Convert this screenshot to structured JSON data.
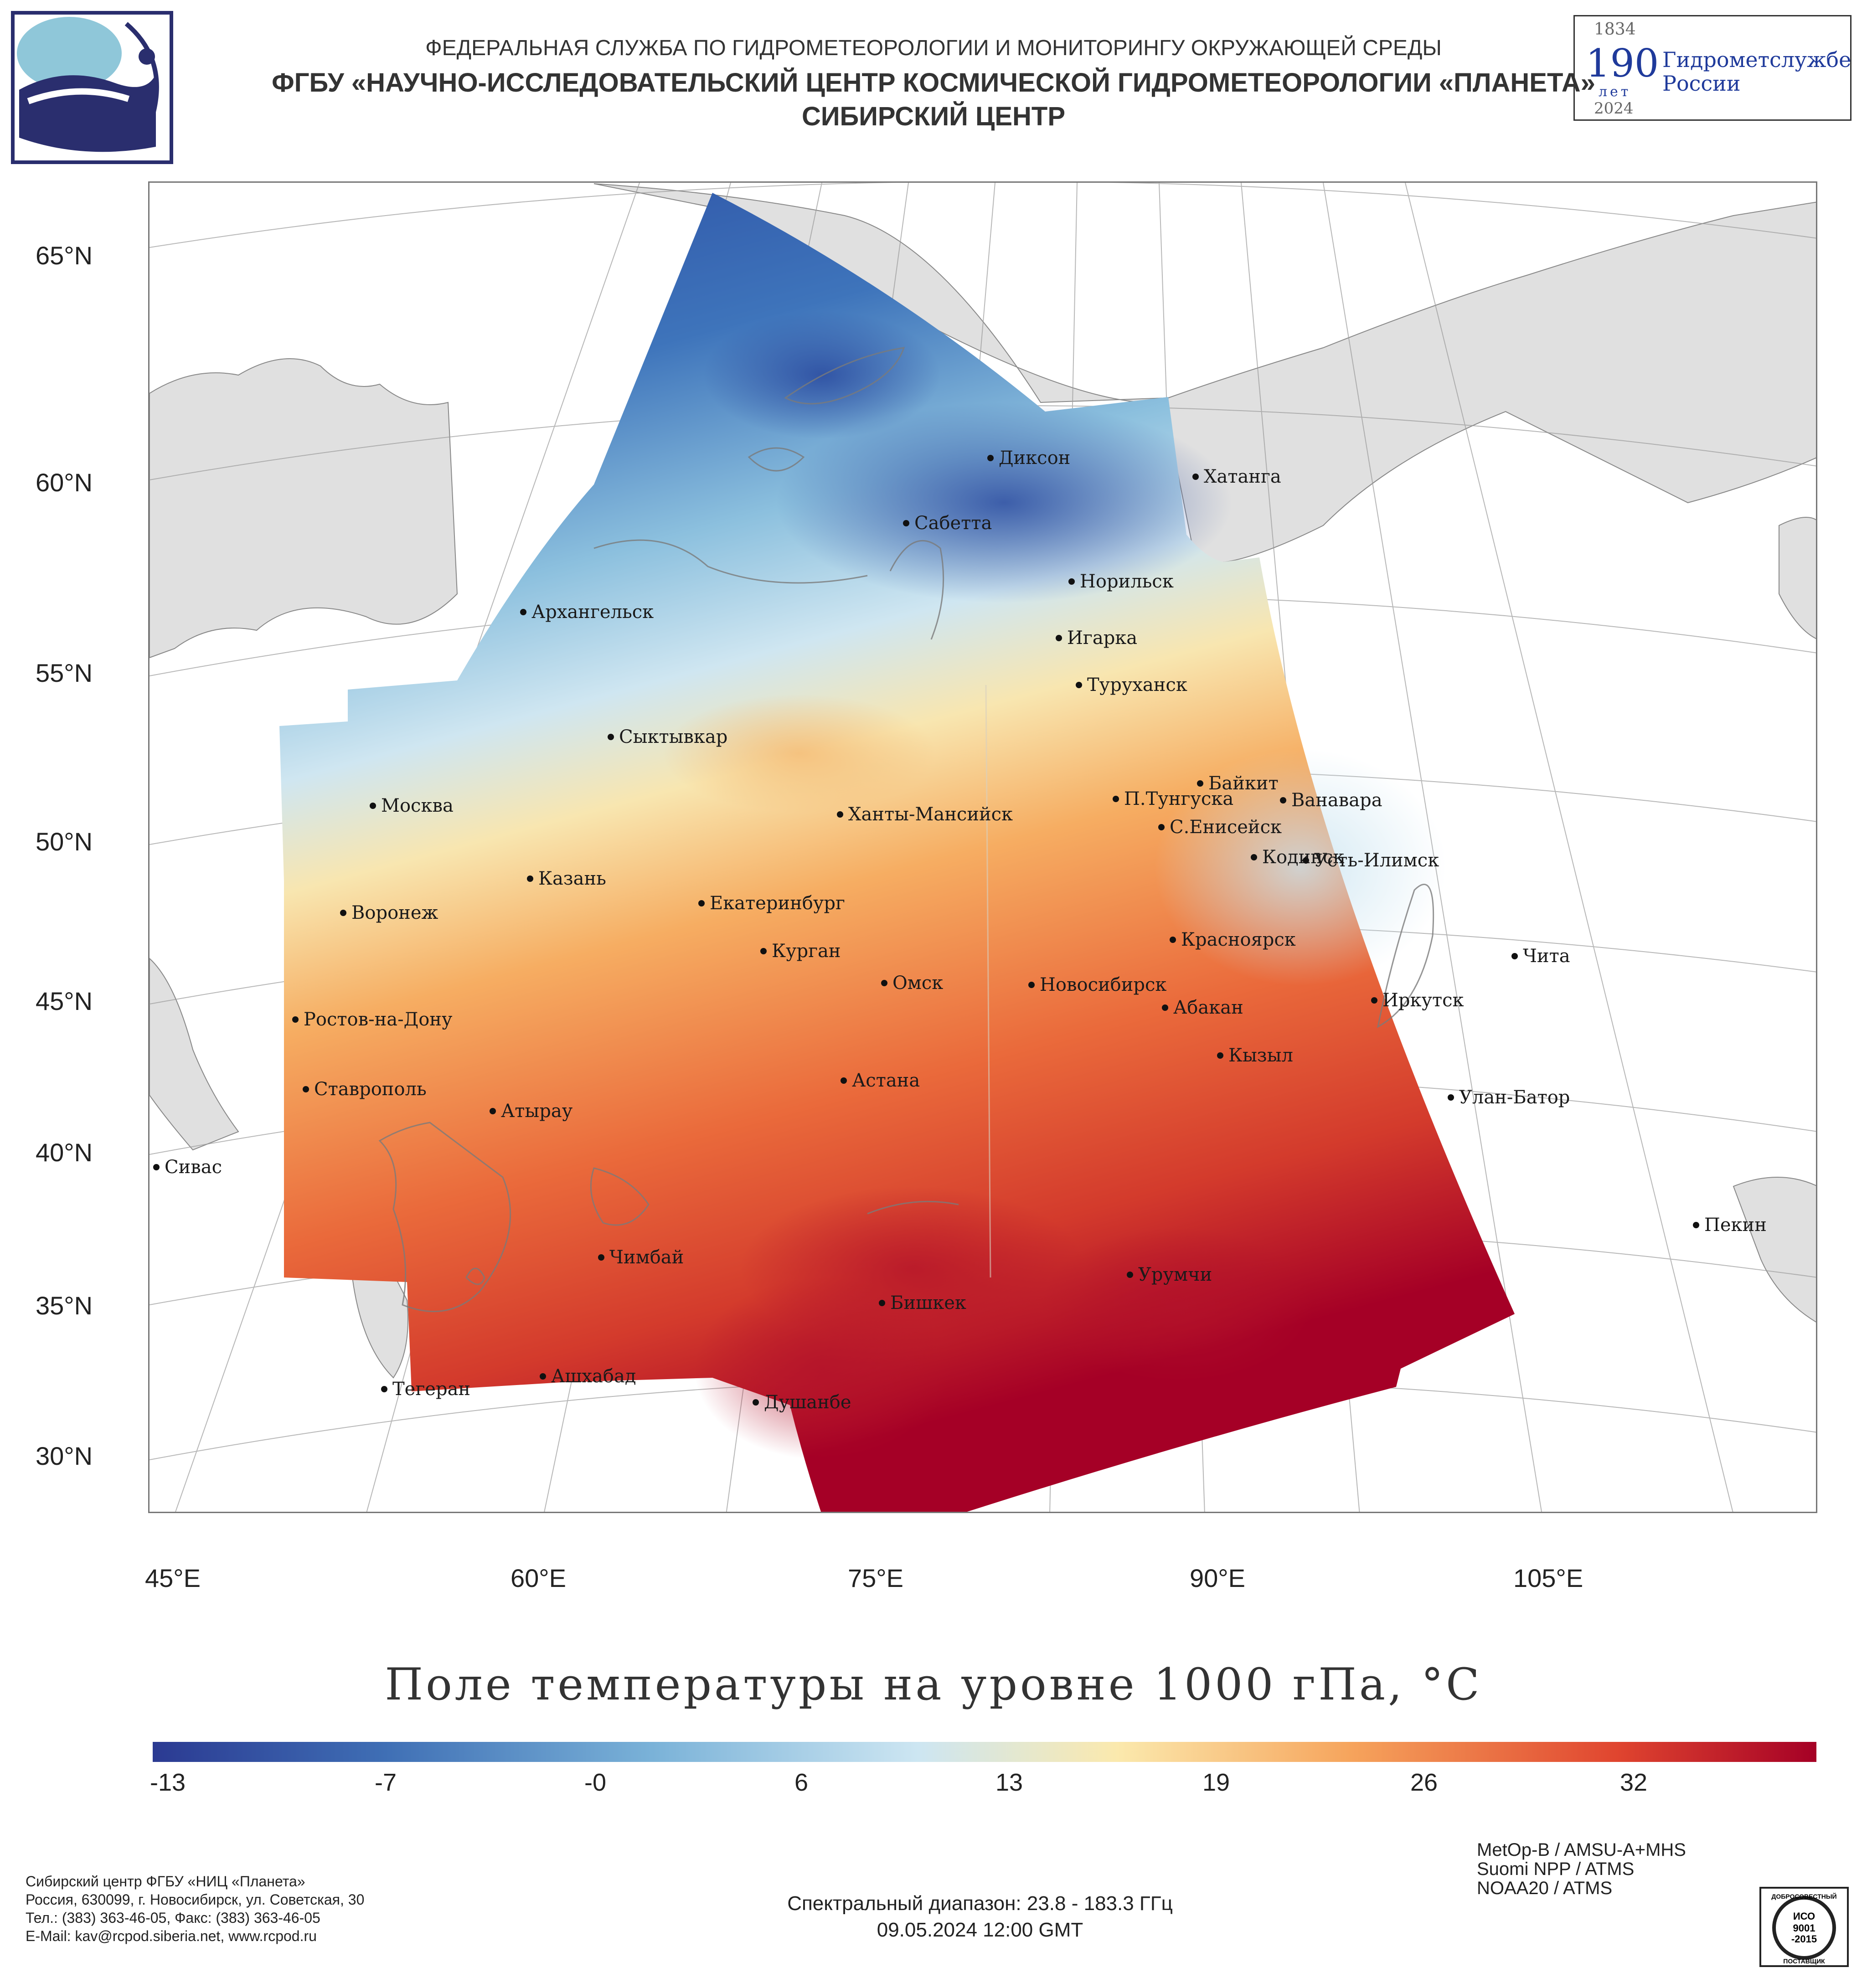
{
  "header": {
    "agency": "ФЕДЕРАЛЬНАЯ СЛУЖБА ПО ГИДРОМЕТЕОРОЛОГИИ И МОНИТОРИНГУ ОКРУЖАЮЩЕЙ СРЕДЫ",
    "institute": "ФГБУ «НАУЧНО-ИССЛЕДОВАТЕЛЬСКИЙ ЦЕНТР КОСМИЧЕСКОЙ ГИДРОМЕТЕОРОЛОГИИ «ПЛАНЕТА»",
    "center": "СИБИРСКИЙ ЦЕНТР"
  },
  "anniversary": {
    "year_start": "1834",
    "years": "190",
    "years_word": "лет",
    "year_end": "2024",
    "text_line1": "Гидрометслужбе",
    "text_line2": "России"
  },
  "map": {
    "latitude_labels": [
      "65°N",
      "60°N",
      "55°N",
      "50°N",
      "45°N",
      "40°N",
      "35°N",
      "30°N"
    ],
    "longitude_labels": [
      "45°E",
      "60°E",
      "75°E",
      "90°E",
      "105°E"
    ],
    "cities": [
      "Диксон",
      "Хатанга",
      "Сабетта",
      "Архангельск",
      "Норильск",
      "Игарка",
      "Туруханск",
      "Сыктывкар",
      "Байкит",
      "Москва",
      "П.Тунгуска",
      "Ванавара",
      "Ханты-Мансийск",
      "С.Енисейск",
      "Кодинск",
      "Усть-Илимск",
      "Казань",
      "Екатеринбург",
      "Воронеж",
      "Красноярск",
      "Курган",
      "Чита",
      "Омск",
      "Новосибирск",
      "Иркутск",
      "Ростов-на-Дону",
      "Абакан",
      "Кызыл",
      "Ставрополь",
      "Астана",
      "Улан-Батор",
      "Атырау",
      "Сивас",
      "Пекин",
      "Чимбай",
      "Урумчи",
      "Бишкек",
      "Ашхабад",
      "Тегеран",
      "Душанбе"
    ],
    "title": "Поле температуры на уровне 1000 гПа, °C"
  },
  "colorbar": {
    "ticks": [
      "-13",
      "-7",
      "-0",
      "6",
      "13",
      "19",
      "26",
      "32"
    ],
    "colors": [
      "#2b3a92",
      "#3f6fb5",
      "#7ab2d8",
      "#cde6f2",
      "#fbe9ad",
      "#f6a45c",
      "#e0452f",
      "#a50026"
    ]
  },
  "footer": {
    "org": "Сибирский центр ФГБУ «НИЦ «Планета»",
    "address": "Россия, 630099, г. Новосибирск, ул. Советская, 30",
    "phone": "Тел.: (383) 363-46-05, Факс: (383) 363-46-05",
    "email": "E-Mail: kav@rcpod.siberia.net, www.rcpod.ru",
    "spectral": "Спектральный диапазон: 23.8 - 183.3 ГГц",
    "datetime": "09.05.2024 12:00 GMT",
    "instruments": [
      "MetOp-B / AMSU-A+MHS",
      "Suomi NPP / ATMS",
      "NOAA20 / ATMS"
    ],
    "iso_top": "ДОБРОСОВЕСТНЫЙ",
    "iso_l1": "ИСО",
    "iso_l2": "9001",
    "iso_l3": "-2015",
    "iso_bottom": "ПОСТАВЩИК"
  }
}
